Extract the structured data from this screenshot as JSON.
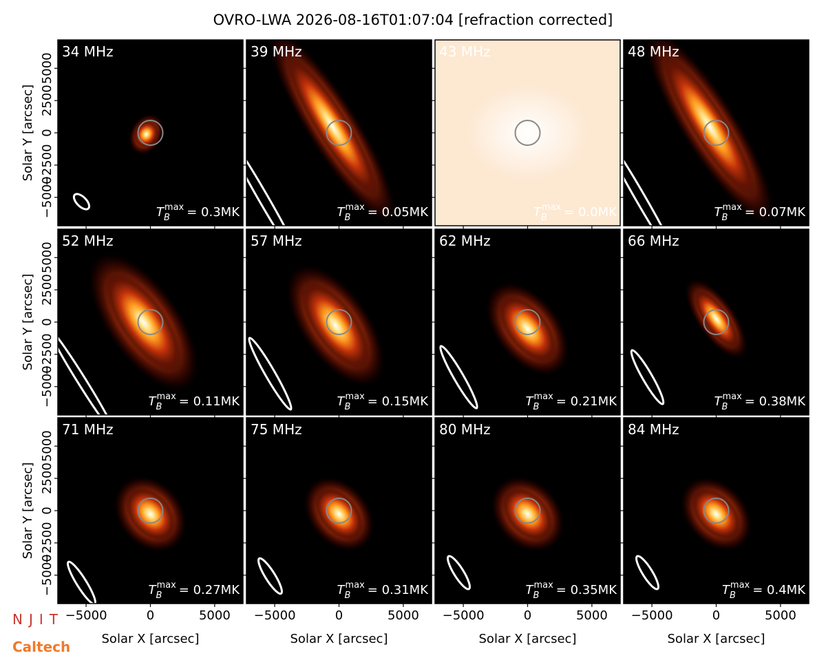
{
  "chart_data": {
    "type": "image-grid",
    "title": "OVRO-LWA 2026-08-16T01:07:04 [refraction corrected]",
    "xlabel": "Solar X [arcsec]",
    "ylabel": "Solar Y [arcsec]",
    "xlim": [
      -7200,
      7200
    ],
    "ylim": [
      -7200,
      7200
    ],
    "xticks": [
      {
        "value": -5000,
        "label": "−5000"
      },
      0,
      5000
    ],
    "yticks": [
      {
        "value": -5000,
        "label": "−5000"
      },
      {
        "value": -2500,
        "label": "−2500"
      },
      0,
      2500,
      5000
    ],
    "tmax_symbol": "T",
    "tmax_sub": "B",
    "tmax_sup": "max",
    "panels": [
      {
        "frequency": "34 MHz",
        "tmax": 0.3,
        "tmax_label": "= 0.3MK",
        "background": "#000000"
      },
      {
        "frequency": "39 MHz",
        "tmax": 0.05,
        "tmax_label": "= 0.05MK",
        "background": "#000000"
      },
      {
        "frequency": "43 MHz",
        "tmax": 0.0,
        "tmax_label": "= 0.0MK",
        "background": "#fde8d2"
      },
      {
        "frequency": "48 MHz",
        "tmax": 0.07,
        "tmax_label": "= 0.07MK",
        "background": "#000000"
      },
      {
        "frequency": "52 MHz",
        "tmax": 0.11,
        "tmax_label": "= 0.11MK",
        "background": "#000000"
      },
      {
        "frequency": "57 MHz",
        "tmax": 0.15,
        "tmax_label": "= 0.15MK",
        "background": "#000000"
      },
      {
        "frequency": "62 MHz",
        "tmax": 0.21,
        "tmax_label": "= 0.21MK",
        "background": "#000000"
      },
      {
        "frequency": "66 MHz",
        "tmax": 0.38,
        "tmax_label": "= 0.38MK",
        "background": "#000000"
      },
      {
        "frequency": "71 MHz",
        "tmax": 0.27,
        "tmax_label": "= 0.27MK",
        "background": "#000000"
      },
      {
        "frequency": "75 MHz",
        "tmax": 0.31,
        "tmax_label": "= 0.31MK",
        "background": "#000000"
      },
      {
        "frequency": "80 MHz",
        "tmax": 0.35,
        "tmax_label": "= 0.35MK",
        "background": "#000000"
      },
      {
        "frequency": "84 MHz",
        "tmax": 0.4,
        "tmax_label": "= 0.4MK",
        "background": "#000000"
      }
    ]
  },
  "logos": [
    "NJIT",
    "Caltech"
  ]
}
